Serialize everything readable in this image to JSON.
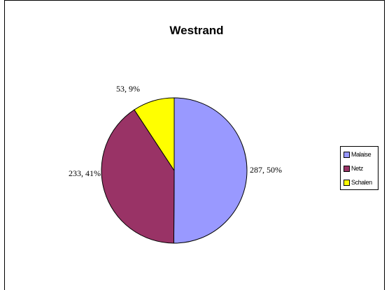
{
  "chart_data": {
    "type": "pie",
    "title": "Westrand",
    "categories": [
      "Malaise",
      "Netz",
      "Schalen"
    ],
    "values": [
      287,
      233,
      53
    ],
    "percent_labels": [
      "50%",
      "41%",
      "9%"
    ],
    "data_labels": [
      "287, 50%",
      "233, 41%",
      "53, 9%"
    ],
    "colors": [
      "#9999ff",
      "#993366",
      "#ffff00"
    ],
    "legend": {
      "placement": "right",
      "entries": [
        "Malaise",
        "Netz",
        "Schalen"
      ]
    },
    "start_angle": "12 o'clock",
    "direction": "clockwise"
  }
}
